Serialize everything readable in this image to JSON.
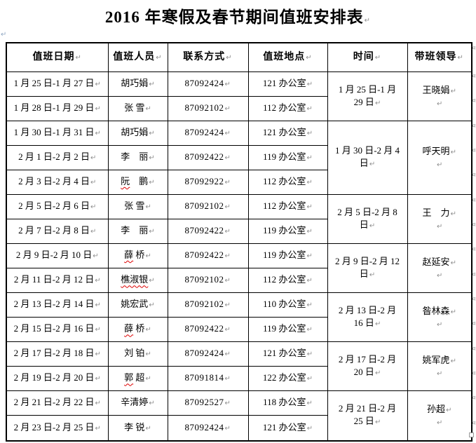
{
  "title": "2016 年寒假及春节期间值班安排表",
  "marks": {
    "paragraph": "↵",
    "row_end": "¤",
    "anchor": "↵"
  },
  "colors": {
    "squiggle": "#dd0000",
    "mark_gray": "#8f8f8f",
    "border": "#000000",
    "background": "#ffffff"
  },
  "table": {
    "headers": [
      "值班日期",
      "值班人员",
      "联系方式",
      "值班地点",
      "时间",
      "带班领导"
    ],
    "rows": [
      {
        "date": "1 月 25 日-1 月 27 日",
        "person_sq": "",
        "person_rest": "胡巧娟",
        "phone": "87092424",
        "room": "121 办公室"
      },
      {
        "date": "1 月 28 日-1 月 29 日",
        "person_sq": "",
        "person_rest": "张 雪",
        "phone": "87092102",
        "room": "112 办公室"
      },
      {
        "date": "1 月 30 日-1 月 31 日",
        "person_sq": "",
        "person_rest": "胡巧娟",
        "phone": "87092424",
        "room": "121 办公室"
      },
      {
        "date": "2 月 1 日-2 月 2 日",
        "person_sq": "",
        "person_rest": "李　丽",
        "phone": "87092422",
        "room": "119 办公室"
      },
      {
        "date": "2 月 3 日-2 月 4 日",
        "person_sq": "阮",
        "person_rest": "　鹏",
        "phone": "87092922",
        "room": "112 办公室"
      },
      {
        "date": "2 月 5 日-2 月 6 日",
        "person_sq": "",
        "person_rest": "张 雪",
        "phone": "87092102",
        "room": "112 办公室"
      },
      {
        "date": "2 月 7 日-2 月 8 日",
        "person_sq": "",
        "person_rest": "李　丽",
        "phone": "87092422",
        "room": "119 办公室"
      },
      {
        "date": "2 月 9 日-2 月 10 日",
        "person_sq": "薛",
        "person_rest": " 桥",
        "phone": "87092422",
        "room": "119 办公室"
      },
      {
        "date": "2 月 11 日-2 月 12 日",
        "person_sq": "樵淑银",
        "person_rest": "",
        "phone": "87092102",
        "room": "112 办公室"
      },
      {
        "date": "2 月 13 日-2 月 14 日",
        "person_sq": "",
        "person_rest": "姚宏武",
        "phone": "87092102",
        "room": "110 办公室"
      },
      {
        "date": "2 月 15 日-2 月 16 日",
        "person_sq": "薛",
        "person_rest": " 桥",
        "phone": "87092422",
        "room": "119 办公室"
      },
      {
        "date": "2 月 17 日-2 月 18 日",
        "person_sq": "",
        "person_rest": "刘 铂",
        "phone": "87092424",
        "room": "121 办公室"
      },
      {
        "date": "2 月 19 日-2 月 20 日",
        "person_sq": "郭",
        "person_rest": " 超",
        "phone": "87091814",
        "room": "122 办公室"
      },
      {
        "date": "2 月 21 日-2 月 22 日",
        "person_sq": "",
        "person_rest": "辛清婷",
        "phone": "87092527",
        "room": "118 办公室"
      },
      {
        "date": "2 月 23 日-2 月 25 日",
        "person_sq": "",
        "person_rest": "李 锐",
        "phone": "87092424",
        "room": "121 办公室"
      }
    ],
    "groups": [
      {
        "span": 2,
        "time1": "1 月 25 日-1 月",
        "time2": "29 日",
        "leader": "王晓娟"
      },
      {
        "span": 3,
        "time1": "1 月 30 日-2 月 4",
        "time2": "日",
        "leader": "呼天明"
      },
      {
        "span": 2,
        "time1": "2 月 5 日-2 月 8",
        "time2": "日",
        "leader": "王　力"
      },
      {
        "span": 2,
        "time1": "2 月 9 日-2 月 12",
        "time2": "日",
        "leader": "赵延安"
      },
      {
        "span": 2,
        "time1": "2 月 13 日-2 月",
        "time2": "16 日",
        "leader": "昝林森"
      },
      {
        "span": 2,
        "time1": "2 月 17 日-2 月",
        "time2": "20 日",
        "leader": "姚军虎"
      },
      {
        "span": 2,
        "time1": "2 月 21 日-2 月",
        "time2": "25 日",
        "leader": "孙超"
      }
    ]
  }
}
